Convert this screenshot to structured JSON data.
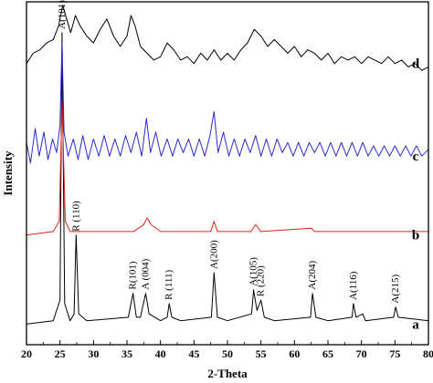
{
  "chart_data": {
    "type": "line",
    "title": "",
    "xlabel": "2-Theta",
    "ylabel": "Intensity",
    "xlim": [
      20,
      80
    ],
    "xticks": [
      "20",
      "25",
      "30",
      "35",
      "40",
      "45",
      "50",
      "55",
      "60",
      "65",
      "70",
      "75",
      "80"
    ],
    "y_ticks_shown": false,
    "grid": false,
    "series": [
      {
        "name": "a",
        "color": "#000000",
        "baseline_level": 0.06,
        "points": [
          [
            20,
            0.06
          ],
          [
            24,
            0.07
          ],
          [
            25,
            0.13
          ],
          [
            25.3,
            0.91
          ],
          [
            25.7,
            0.12
          ],
          [
            26.5,
            0.07
          ],
          [
            27.1,
            0.09
          ],
          [
            27.4,
            0.32
          ],
          [
            27.8,
            0.09
          ],
          [
            29,
            0.07
          ],
          [
            35.2,
            0.08
          ],
          [
            35.9,
            0.15
          ],
          [
            36.4,
            0.08
          ],
          [
            37,
            0.08
          ],
          [
            37.8,
            0.15
          ],
          [
            38.3,
            0.09
          ],
          [
            40,
            0.07
          ],
          [
            41,
            0.08
          ],
          [
            41.3,
            0.12
          ],
          [
            41.7,
            0.08
          ],
          [
            43,
            0.07
          ],
          [
            47.6,
            0.08
          ],
          [
            48,
            0.21
          ],
          [
            48.5,
            0.08
          ],
          [
            50,
            0.07
          ],
          [
            53.6,
            0.09
          ],
          [
            53.9,
            0.16
          ],
          [
            54.4,
            0.1
          ],
          [
            55,
            0.13
          ],
          [
            55.5,
            0.08
          ],
          [
            57,
            0.07
          ],
          [
            62.4,
            0.08
          ],
          [
            62.7,
            0.15
          ],
          [
            63.2,
            0.08
          ],
          [
            65,
            0.07
          ],
          [
            68.6,
            0.08
          ],
          [
            68.8,
            0.12
          ],
          [
            69.2,
            0.08
          ],
          [
            70.2,
            0.09
          ],
          [
            70.6,
            0.07
          ],
          [
            74.8,
            0.08
          ],
          [
            75.1,
            0.11
          ],
          [
            75.5,
            0.08
          ],
          [
            80,
            0.07
          ]
        ]
      },
      {
        "name": "b",
        "color": "#e0201e",
        "baseline_level": 0.32,
        "points": [
          [
            20,
            0.32
          ],
          [
            24,
            0.33
          ],
          [
            24.9,
            0.36
          ],
          [
            25.3,
            0.71
          ],
          [
            25.8,
            0.36
          ],
          [
            26.5,
            0.33
          ],
          [
            30,
            0.33
          ],
          [
            36,
            0.33
          ],
          [
            37.5,
            0.35
          ],
          [
            38,
            0.37
          ],
          [
            38.6,
            0.35
          ],
          [
            40,
            0.33
          ],
          [
            47.5,
            0.33
          ],
          [
            48,
            0.36
          ],
          [
            48.5,
            0.33
          ],
          [
            53.5,
            0.33
          ],
          [
            54.2,
            0.35
          ],
          [
            55,
            0.33
          ],
          [
            62.5,
            0.34
          ],
          [
            63,
            0.33
          ],
          [
            80,
            0.33
          ]
        ]
      },
      {
        "name": "c",
        "color": "#2a2ad0",
        "baseline_level": 0.55,
        "points": [
          [
            20,
            0.59
          ],
          [
            20.6,
            0.53
          ],
          [
            21.3,
            0.63
          ],
          [
            21.9,
            0.55
          ],
          [
            22.6,
            0.62
          ],
          [
            23.2,
            0.54
          ],
          [
            23.9,
            0.6
          ],
          [
            24.5,
            0.56
          ],
          [
            25,
            0.64
          ],
          [
            25.3,
            0.88
          ],
          [
            25.6,
            0.62
          ],
          [
            26.2,
            0.55
          ],
          [
            27,
            0.6
          ],
          [
            27.7,
            0.54
          ],
          [
            28.4,
            0.61
          ],
          [
            29.2,
            0.54
          ],
          [
            30,
            0.6
          ],
          [
            30.8,
            0.55
          ],
          [
            31.6,
            0.61
          ],
          [
            32.4,
            0.55
          ],
          [
            33.2,
            0.6
          ],
          [
            34,
            0.55
          ],
          [
            34.8,
            0.61
          ],
          [
            35.6,
            0.56
          ],
          [
            36.4,
            0.62
          ],
          [
            37.2,
            0.55
          ],
          [
            37.9,
            0.66
          ],
          [
            38.5,
            0.56
          ],
          [
            39.3,
            0.62
          ],
          [
            40.1,
            0.55
          ],
          [
            41,
            0.6
          ],
          [
            41.8,
            0.55
          ],
          [
            42.6,
            0.6
          ],
          [
            43.4,
            0.56
          ],
          [
            44.2,
            0.6
          ],
          [
            45,
            0.55
          ],
          [
            45.8,
            0.6
          ],
          [
            46.6,
            0.55
          ],
          [
            47.4,
            0.61
          ],
          [
            48,
            0.68
          ],
          [
            48.6,
            0.56
          ],
          [
            49.4,
            0.62
          ],
          [
            50.2,
            0.55
          ],
          [
            51,
            0.6
          ],
          [
            51.8,
            0.55
          ],
          [
            52.6,
            0.6
          ],
          [
            53.4,
            0.56
          ],
          [
            54.2,
            0.61
          ],
          [
            55,
            0.55
          ],
          [
            55.8,
            0.6
          ],
          [
            56.6,
            0.55
          ],
          [
            57.4,
            0.6
          ],
          [
            58.2,
            0.56
          ],
          [
            59,
            0.59
          ],
          [
            59.8,
            0.55
          ],
          [
            60.6,
            0.59
          ],
          [
            61.4,
            0.55
          ],
          [
            62.2,
            0.59
          ],
          [
            63,
            0.56
          ],
          [
            63.8,
            0.59
          ],
          [
            64.6,
            0.55
          ],
          [
            65.4,
            0.59
          ],
          [
            66.2,
            0.55
          ],
          [
            67,
            0.59
          ],
          [
            67.8,
            0.55
          ],
          [
            68.6,
            0.59
          ],
          [
            69.4,
            0.55
          ],
          [
            70.2,
            0.59
          ],
          [
            71,
            0.55
          ],
          [
            71.8,
            0.58
          ],
          [
            72.6,
            0.55
          ],
          [
            73.4,
            0.58
          ],
          [
            74.2,
            0.55
          ],
          [
            75,
            0.58
          ],
          [
            75.8,
            0.55
          ],
          [
            76.6,
            0.58
          ],
          [
            77.4,
            0.55
          ],
          [
            78.2,
            0.58
          ],
          [
            79,
            0.55
          ],
          [
            80,
            0.57
          ]
        ]
      },
      {
        "name": "d",
        "color": "#000000",
        "baseline_level": 0.82,
        "points": [
          [
            20,
            0.82
          ],
          [
            21,
            0.85
          ],
          [
            22,
            0.86
          ],
          [
            23,
            0.88
          ],
          [
            24,
            0.89
          ],
          [
            24.8,
            0.93
          ],
          [
            25.4,
            0.99
          ],
          [
            26,
            0.95
          ],
          [
            26.6,
            0.91
          ],
          [
            27.3,
            0.96
          ],
          [
            28,
            0.93
          ],
          [
            29,
            0.9
          ],
          [
            30,
            0.88
          ],
          [
            31,
            0.92
          ],
          [
            32,
            0.95
          ],
          [
            33,
            0.9
          ],
          [
            34,
            0.87
          ],
          [
            35,
            0.9
          ],
          [
            35.6,
            0.96
          ],
          [
            36.2,
            0.93
          ],
          [
            37,
            0.87
          ],
          [
            38,
            0.85
          ],
          [
            39,
            0.83
          ],
          [
            40,
            0.84
          ],
          [
            41,
            0.88
          ],
          [
            42,
            0.86
          ],
          [
            43,
            0.83
          ],
          [
            44,
            0.84
          ],
          [
            45,
            0.82
          ],
          [
            46,
            0.85
          ],
          [
            47,
            0.83
          ],
          [
            48,
            0.86
          ],
          [
            49,
            0.83
          ],
          [
            50,
            0.85
          ],
          [
            51,
            0.83
          ],
          [
            52,
            0.86
          ],
          [
            53,
            0.88
          ],
          [
            54,
            0.92
          ],
          [
            55,
            0.9
          ],
          [
            56,
            0.87
          ],
          [
            57,
            0.89
          ],
          [
            58,
            0.87
          ],
          [
            59,
            0.85
          ],
          [
            60,
            0.87
          ],
          [
            61,
            0.84
          ],
          [
            62,
            0.86
          ],
          [
            63,
            0.85
          ],
          [
            64,
            0.83
          ],
          [
            65,
            0.85
          ],
          [
            66,
            0.82
          ],
          [
            67,
            0.84
          ],
          [
            68,
            0.83
          ],
          [
            69,
            0.84
          ],
          [
            70,
            0.82
          ],
          [
            71,
            0.84
          ],
          [
            72,
            0.83
          ],
          [
            73,
            0.82
          ],
          [
            74,
            0.84
          ],
          [
            75,
            0.82
          ],
          [
            76,
            0.83
          ],
          [
            77,
            0.81
          ],
          [
            78,
            0.82
          ],
          [
            79,
            0.8
          ],
          [
            80,
            0.81
          ]
        ]
      }
    ],
    "peak_annotations": [
      {
        "label": "A(101)",
        "x": 25.3,
        "level": 0.91
      },
      {
        "label": "R (110)",
        "x": 27.4,
        "level": 0.32
      },
      {
        "label": "R(101)",
        "x": 35.9,
        "level": 0.15
      },
      {
        "label": "A (004)",
        "x": 37.8,
        "level": 0.15
      },
      {
        "label": "R (111)",
        "x": 41.3,
        "level": 0.12
      },
      {
        "label": "A(200)",
        "x": 48.0,
        "level": 0.21
      },
      {
        "label": "A(105)",
        "x": 53.9,
        "level": 0.16
      },
      {
        "label": "R (220)",
        "x": 55.0,
        "level": 0.13
      },
      {
        "label": "A(204)",
        "x": 62.7,
        "level": 0.15
      },
      {
        "label": "A(116)",
        "x": 68.8,
        "level": 0.12
      },
      {
        "label": "A(215)",
        "x": 75.1,
        "level": 0.11
      }
    ]
  }
}
